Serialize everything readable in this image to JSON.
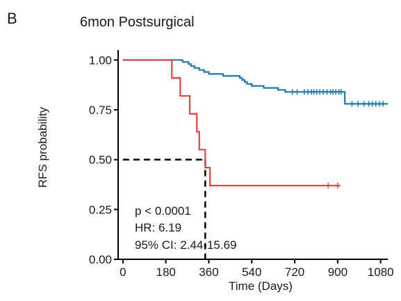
{
  "panel_label": "B",
  "chart_data": {
    "type": "line",
    "title": "6mon Postsurgical",
    "xlabel": "Time (Days)",
    "ylabel": "RFS probability",
    "xlim": [
      -20,
      1110
    ],
    "ylim": [
      0,
      1.05
    ],
    "x_ticks": [
      0,
      180,
      360,
      540,
      720,
      900,
      1080
    ],
    "x_tick_labels": [
      "0",
      "180",
      "360",
      "540",
      "720",
      "900",
      "1080"
    ],
    "y_ticks": [
      0,
      0.25,
      0.5,
      0.75,
      1.0
    ],
    "y_tick_labels": [
      "0.00",
      "0.25",
      "0.50",
      "0.75",
      "1.00"
    ],
    "grid": false,
    "legend": "none",
    "series": [
      {
        "color": "#1f77b4",
        "steps": [
          [
            0,
            1.0
          ],
          [
            235,
            1.0
          ],
          [
            250,
            0.99
          ],
          [
            275,
            0.98
          ],
          [
            285,
            0.97
          ],
          [
            300,
            0.96
          ],
          [
            320,
            0.95
          ],
          [
            340,
            0.94
          ],
          [
            360,
            0.93
          ],
          [
            420,
            0.92
          ],
          [
            490,
            0.91
          ],
          [
            500,
            0.9
          ],
          [
            510,
            0.89
          ],
          [
            520,
            0.88
          ],
          [
            540,
            0.87
          ],
          [
            590,
            0.86
          ],
          [
            650,
            0.85
          ],
          [
            680,
            0.84
          ],
          [
            920,
            0.84
          ],
          [
            930,
            0.78
          ],
          [
            1110,
            0.78
          ]
        ],
        "censors": [
          [
            710,
            0.84
          ],
          [
            730,
            0.84
          ],
          [
            760,
            0.84
          ],
          [
            775,
            0.84
          ],
          [
            790,
            0.84
          ],
          [
            800,
            0.84
          ],
          [
            812,
            0.84
          ],
          [
            825,
            0.84
          ],
          [
            840,
            0.84
          ],
          [
            855,
            0.84
          ],
          [
            870,
            0.84
          ],
          [
            880,
            0.84
          ],
          [
            892,
            0.84
          ],
          [
            905,
            0.84
          ],
          [
            915,
            0.84
          ],
          [
            960,
            0.78
          ],
          [
            985,
            0.78
          ],
          [
            1010,
            0.78
          ],
          [
            1030,
            0.78
          ],
          [
            1045,
            0.78
          ],
          [
            1060,
            0.78
          ],
          [
            1075,
            0.78
          ],
          [
            1090,
            0.78
          ]
        ]
      },
      {
        "color": "#e8413a",
        "steps": [
          [
            0,
            1.0
          ],
          [
            205,
            1.0
          ],
          [
            205,
            0.91
          ],
          [
            240,
            0.91
          ],
          [
            240,
            0.82
          ],
          [
            280,
            0.82
          ],
          [
            280,
            0.73
          ],
          [
            310,
            0.73
          ],
          [
            310,
            0.64
          ],
          [
            320,
            0.64
          ],
          [
            320,
            0.55
          ],
          [
            345,
            0.55
          ],
          [
            345,
            0.46
          ],
          [
            365,
            0.46
          ],
          [
            365,
            0.37
          ],
          [
            910,
            0.37
          ]
        ],
        "censors": [
          [
            860,
            0.37
          ],
          [
            900,
            0.37
          ]
        ]
      }
    ],
    "median_line": {
      "x": 345,
      "y": 0.5
    },
    "annotations": [
      "p < 0.0001",
      "HR: 6.19",
      "95% CI: 2.44-15.69"
    ]
  }
}
